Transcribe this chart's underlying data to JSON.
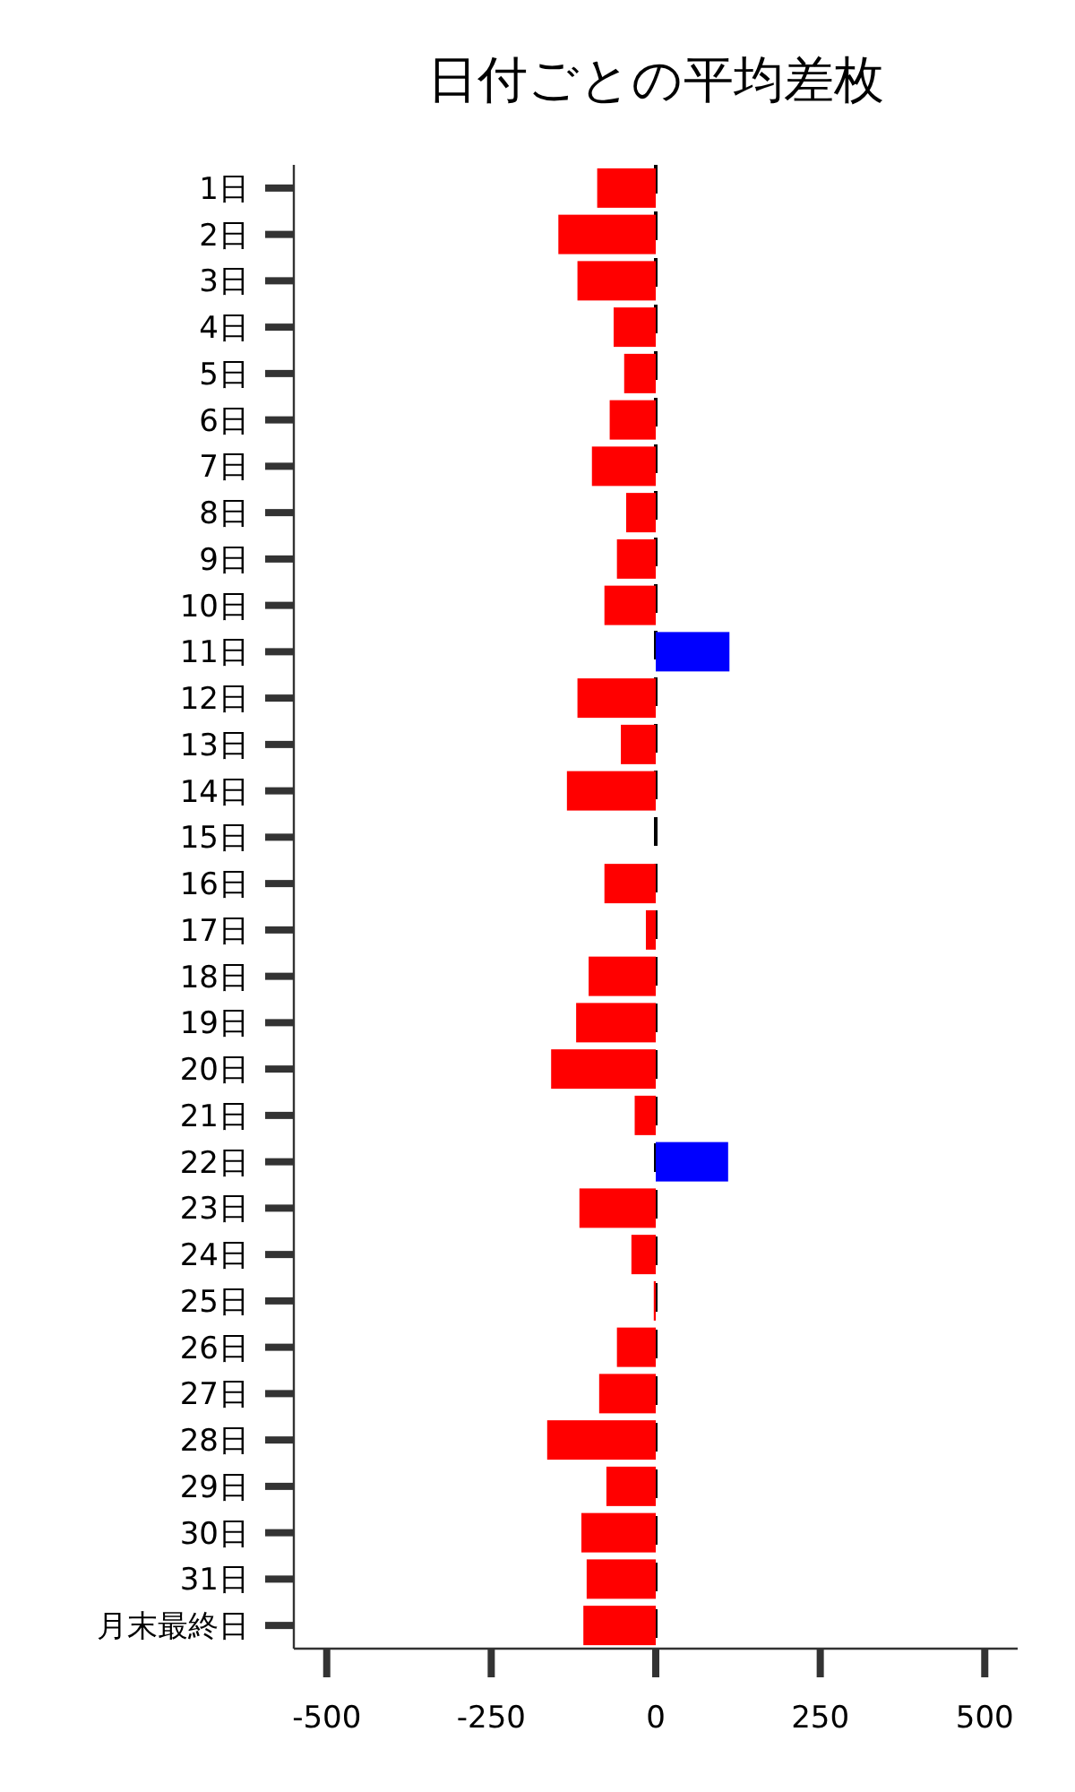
{
  "chart_data": {
    "type": "bar",
    "orientation": "horizontal",
    "title": "日付ごとの平均差枚",
    "categories": [
      "1日",
      "2日",
      "3日",
      "4日",
      "5日",
      "6日",
      "7日",
      "8日",
      "9日",
      "10日",
      "11日",
      "12日",
      "13日",
      "14日",
      "15日",
      "16日",
      "17日",
      "18日",
      "19日",
      "20日",
      "21日",
      "22日",
      "23日",
      "24日",
      "25日",
      "26日",
      "27日",
      "28日",
      "29日",
      "30日",
      "31日",
      "月末最終日"
    ],
    "values": [
      -89,
      -148,
      -119,
      -64,
      -48,
      -70,
      -97,
      -45,
      -59,
      -78,
      112,
      -119,
      -53,
      -135,
      0,
      -78,
      -15,
      -102,
      -121,
      -159,
      -32,
      110,
      -116,
      -37,
      -3,
      -59,
      -86,
      -165,
      -75,
      -113,
      -105,
      -110
    ],
    "colors": [
      "#ff0000",
      "#ff0000",
      "#ff0000",
      "#ff0000",
      "#ff0000",
      "#ff0000",
      "#ff0000",
      "#ff0000",
      "#ff0000",
      "#ff0000",
      "#0000ff",
      "#ff0000",
      "#ff0000",
      "#ff0000",
      "#ff0000",
      "#ff0000",
      "#ff0000",
      "#ff0000",
      "#ff0000",
      "#ff0000",
      "#ff0000",
      "#0000ff",
      "#ff0000",
      "#ff0000",
      "#ff0000",
      "#ff0000",
      "#ff0000",
      "#ff0000",
      "#ff0000",
      "#ff0000",
      "#ff0000",
      "#ff0000"
    ],
    "xlim": [
      -550,
      550
    ],
    "xticks": [
      {
        "value": -500,
        "label": "-500"
      },
      {
        "value": -250,
        "label": "-250"
      },
      0,
      250,
      500
    ],
    "ref_lines": [
      {
        "axis": "x",
        "value": 0,
        "color": "#000000",
        "line_style": "dashed"
      }
    ],
    "grid": false
  }
}
